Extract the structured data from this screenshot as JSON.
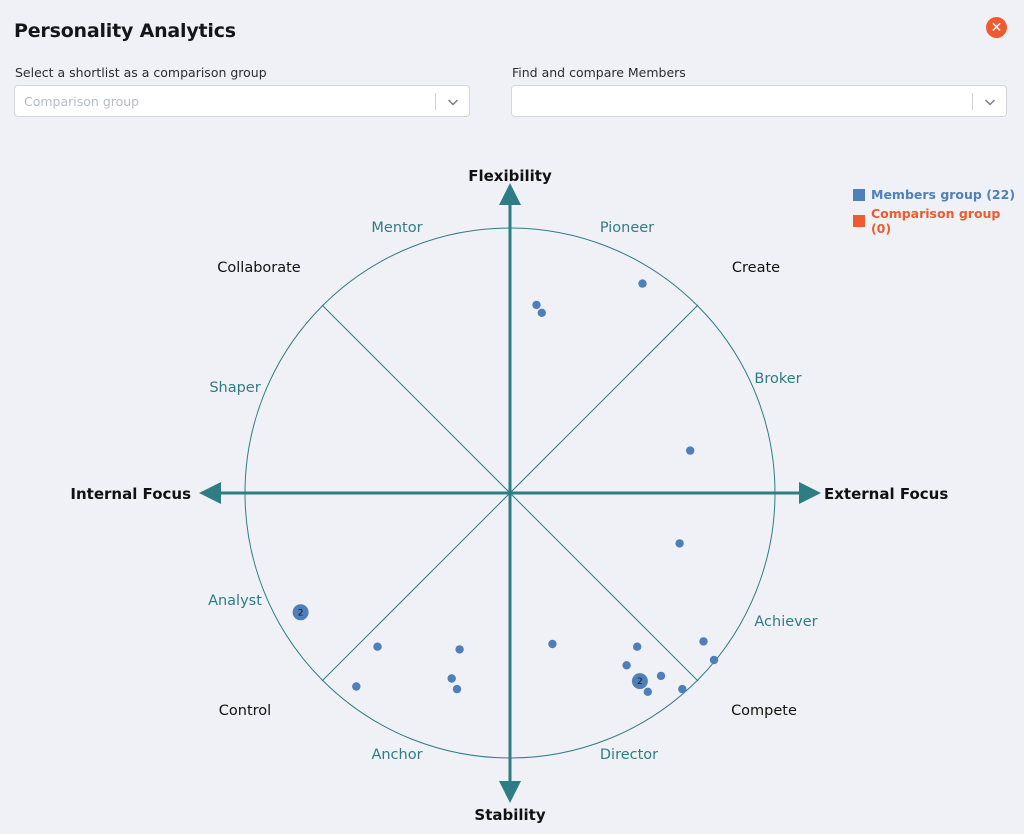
{
  "header": {
    "title": "Personality Analytics",
    "close_icon": "close-icon",
    "close_color": "#ef5b31"
  },
  "comparison": {
    "label": "Select a shortlist as a comparison group",
    "placeholder": "Comparison group",
    "value": ""
  },
  "members": {
    "label": "Find and compare Members",
    "placeholder": "",
    "value": ""
  },
  "legend": {
    "members": {
      "label": "Members group (22)",
      "color": "#5080b8"
    },
    "comparison": {
      "label": "Comparison group (0)",
      "color": "#ef5b31"
    }
  },
  "chart": {
    "axes": {
      "top": "Flexibility",
      "bottom": "Stability",
      "left": "Internal Focus",
      "right": "External Focus"
    },
    "corners": {
      "top_left": "Collaborate",
      "top_right": "Create",
      "bottom_left": "Control",
      "bottom_right": "Compete"
    },
    "sectors": {
      "mentor": "Mentor",
      "pioneer": "Pioneer",
      "broker": "Broker",
      "achiever": "Achiever",
      "director": "Director",
      "anchor": "Anchor",
      "analyst": "Analyst",
      "shaper": "Shaper"
    },
    "line_color": "#2e7d83",
    "dot_color": "#4f7fb9"
  },
  "chart_data": {
    "type": "scatter",
    "axes": {
      "x": {
        "negative": "Internal Focus",
        "positive": "External Focus"
      },
      "y": {
        "negative": "Stability",
        "positive": "Flexibility"
      }
    },
    "xlim": [
      -1,
      1
    ],
    "ylim": [
      -1,
      1
    ],
    "grid": false,
    "legend": "top-right",
    "series": [
      {
        "name": "Members group (22)",
        "color": "#4f7fb9",
        "points": [
          {
            "x": 0.1,
            "y": 0.71
          },
          {
            "x": 0.12,
            "y": 0.68
          },
          {
            "x": 0.5,
            "y": 0.79
          },
          {
            "x": 0.68,
            "y": 0.16
          },
          {
            "x": 0.64,
            "y": -0.19
          },
          {
            "x": -0.79,
            "y": -0.45,
            "count": 2
          },
          {
            "x": -0.5,
            "y": -0.58
          },
          {
            "x": -0.58,
            "y": -0.73
          },
          {
            "x": -0.19,
            "y": -0.59
          },
          {
            "x": -0.22,
            "y": -0.7
          },
          {
            "x": -0.2,
            "y": -0.74
          },
          {
            "x": 0.16,
            "y": -0.57
          },
          {
            "x": 0.48,
            "y": -0.58
          },
          {
            "x": 0.44,
            "y": -0.65
          },
          {
            "x": 0.49,
            "y": -0.71,
            "count": 2
          },
          {
            "x": 0.52,
            "y": -0.75
          },
          {
            "x": 0.57,
            "y": -0.69
          },
          {
            "x": 0.65,
            "y": -0.74
          },
          {
            "x": 0.73,
            "y": -0.56
          },
          {
            "x": 0.77,
            "y": -0.63
          }
        ]
      },
      {
        "name": "Comparison group (0)",
        "color": "#ef5b31",
        "points": []
      }
    ]
  }
}
